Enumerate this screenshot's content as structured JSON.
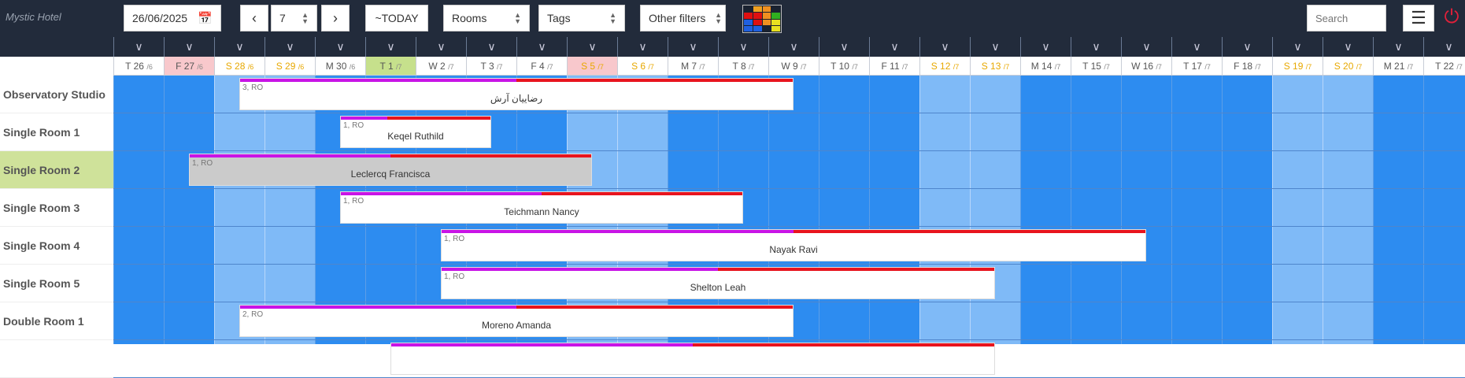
{
  "header": {
    "brand": "Mystic Hotel",
    "date": "26/06/2025",
    "days_select": "7",
    "today_label": "~TODAY",
    "rooms_select": "Rooms",
    "tags_select": "Tags",
    "other_filters": "Other filters",
    "search_placeholder": "Search"
  },
  "colors": {
    "weekday": "#2d8cf0",
    "weekend": "#7fbaf7",
    "purple": "#c814e6",
    "red": "#e8141e",
    "today": "#c6e08c",
    "holiday": "#f8c8cc"
  },
  "days": [
    {
      "d": "T 26",
      "m": "/6",
      "type": "wd"
    },
    {
      "d": "F 27",
      "m": "/6",
      "type": "wd",
      "mark": "pink"
    },
    {
      "d": "S 28",
      "m": "/6",
      "type": "we"
    },
    {
      "d": "S 29",
      "m": "/6",
      "type": "we"
    },
    {
      "d": "M 30",
      "m": "/6",
      "type": "wd"
    },
    {
      "d": "T 1",
      "m": "/7",
      "type": "wd",
      "mark": "green"
    },
    {
      "d": "W 2",
      "m": "/7",
      "type": "wd"
    },
    {
      "d": "T 3",
      "m": "/7",
      "type": "wd"
    },
    {
      "d": "F 4",
      "m": "/7",
      "type": "wd"
    },
    {
      "d": "S 5",
      "m": "/7",
      "type": "we",
      "mark": "pink"
    },
    {
      "d": "S 6",
      "m": "/7",
      "type": "we"
    },
    {
      "d": "M 7",
      "m": "/7",
      "type": "wd"
    },
    {
      "d": "T 8",
      "m": "/7",
      "type": "wd"
    },
    {
      "d": "W 9",
      "m": "/7",
      "type": "wd"
    },
    {
      "d": "T 10",
      "m": "/7",
      "type": "wd"
    },
    {
      "d": "F 11",
      "m": "/7",
      "type": "wd"
    },
    {
      "d": "S 12",
      "m": "/7",
      "type": "we"
    },
    {
      "d": "S 13",
      "m": "/7",
      "type": "we"
    },
    {
      "d": "M 14",
      "m": "/7",
      "type": "wd"
    },
    {
      "d": "T 15",
      "m": "/7",
      "type": "wd"
    },
    {
      "d": "W 16",
      "m": "/7",
      "type": "wd"
    },
    {
      "d": "T 17",
      "m": "/7",
      "type": "wd"
    },
    {
      "d": "F 18",
      "m": "/7",
      "type": "wd"
    },
    {
      "d": "S 19",
      "m": "/7",
      "type": "we"
    },
    {
      "d": "S 20",
      "m": "/7",
      "type": "we"
    },
    {
      "d": "M 21",
      "m": "/7",
      "type": "wd"
    },
    {
      "d": "T 22",
      "m": "/7",
      "type": "wd"
    }
  ],
  "rooms": [
    {
      "name": "Observatory Studio"
    },
    {
      "name": "Single Room 1"
    },
    {
      "name": "Single Room 2",
      "selected": true
    },
    {
      "name": "Single Room 3"
    },
    {
      "name": "Single Room 4"
    },
    {
      "name": "Single Room 5"
    },
    {
      "name": "Double Room 1"
    },
    {
      "name": ""
    }
  ],
  "bookings": [
    {
      "room": 0,
      "start": 2.5,
      "end": 13.5,
      "paid": 0.5,
      "meta": "3, RO",
      "guest": "رضاییان آرش"
    },
    {
      "room": 1,
      "start": 4.5,
      "end": 7.5,
      "paid": 0.31,
      "meta": "1, RO",
      "guest": "Keqel Ruthild"
    },
    {
      "room": 2,
      "start": 1.5,
      "end": 9.5,
      "paid": 0.5,
      "meta": "1, RO",
      "guest": "Leclercq Francisca",
      "gray": true
    },
    {
      "room": 3,
      "start": 4.5,
      "end": 12.5,
      "paid": 0.5,
      "meta": "1, RO",
      "guest": "Teichmann Nancy"
    },
    {
      "room": 4,
      "start": 6.5,
      "end": 20.5,
      "paid": 0.5,
      "meta": "1, RO",
      "guest": "Nayak Ravi"
    },
    {
      "room": 5,
      "start": 6.5,
      "end": 17.5,
      "paid": 0.5,
      "meta": "1, RO",
      "guest": "Shelton Leah"
    },
    {
      "room": 6,
      "start": 2.5,
      "end": 13.5,
      "paid": 0.5,
      "meta": "2, RO",
      "guest": "Moreno Amanda"
    },
    {
      "room": 7,
      "start": 5.5,
      "end": 17.5,
      "paid": 0.5,
      "meta": "",
      "guest": ""
    }
  ]
}
